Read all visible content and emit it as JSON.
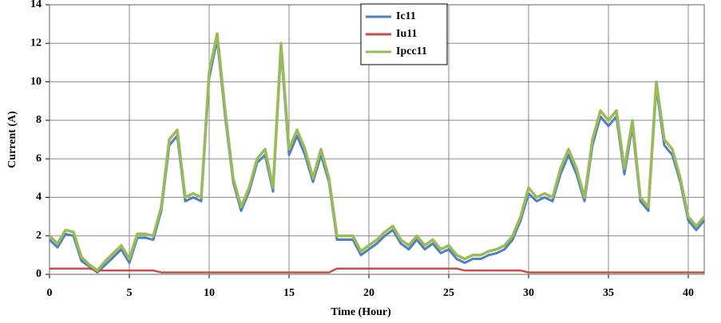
{
  "chart_data": {
    "type": "line",
    "xlabel": "Time (Hour)",
    "ylabel": "Current (A)",
    "x": [
      0,
      0.5,
      1,
      1.5,
      2,
      2.5,
      3,
      3.5,
      4,
      4.5,
      5,
      5.5,
      6,
      6.5,
      7,
      7.5,
      8,
      8.5,
      9,
      9.5,
      10,
      10.5,
      11,
      11.5,
      12,
      12.5,
      13,
      13.5,
      14,
      14.5,
      15,
      15.5,
      16,
      16.5,
      17,
      17.5,
      18,
      18.5,
      19,
      19.5,
      20,
      20.5,
      21,
      21.5,
      22,
      22.5,
      23,
      23.5,
      24,
      24.5,
      25,
      25.5,
      26,
      26.5,
      27,
      27.5,
      28,
      28.5,
      29,
      29.5,
      30,
      30.5,
      31,
      31.5,
      32,
      32.5,
      33,
      33.5,
      34,
      34.5,
      35,
      35.5,
      36,
      36.5,
      37,
      37.5,
      38,
      38.5,
      39,
      39.5,
      40,
      40.5,
      41
    ],
    "series": [
      {
        "name": "Ic11",
        "color": "#4f81bd",
        "values": [
          1.8,
          1.4,
          2.1,
          2.0,
          0.7,
          0.4,
          0.1,
          0.5,
          0.9,
          1.3,
          0.6,
          1.9,
          1.9,
          1.8,
          3.3,
          6.7,
          7.2,
          3.8,
          4.0,
          3.8,
          10.2,
          12.2,
          8.2,
          4.8,
          3.3,
          4.3,
          5.8,
          6.2,
          4.3,
          11.7,
          6.2,
          7.2,
          6.2,
          4.8,
          6.2,
          4.8,
          1.8,
          1.8,
          1.8,
          1.0,
          1.3,
          1.6,
          2.0,
          2.3,
          1.6,
          1.3,
          1.8,
          1.3,
          1.6,
          1.1,
          1.3,
          0.8,
          0.6,
          0.8,
          0.8,
          1.0,
          1.1,
          1.3,
          1.8,
          2.8,
          4.2,
          3.8,
          4.0,
          3.8,
          5.2,
          6.2,
          5.2,
          3.8,
          6.7,
          8.2,
          7.7,
          8.2,
          5.2,
          7.7,
          3.8,
          3.3,
          9.7,
          6.7,
          6.2,
          4.8,
          2.8,
          2.3,
          2.8
        ]
      },
      {
        "name": "Iu11",
        "color": "#c0504d",
        "values": [
          0.3,
          0.3,
          0.3,
          0.3,
          0.3,
          0.3,
          0.2,
          0.2,
          0.2,
          0.2,
          0.2,
          0.2,
          0.2,
          0.2,
          0.1,
          0.1,
          0.1,
          0.1,
          0.1,
          0.1,
          0.1,
          0.1,
          0.1,
          0.1,
          0.1,
          0.1,
          0.1,
          0.1,
          0.1,
          0.1,
          0.1,
          0.1,
          0.1,
          0.1,
          0.1,
          0.1,
          0.3,
          0.3,
          0.3,
          0.3,
          0.3,
          0.3,
          0.3,
          0.3,
          0.3,
          0.3,
          0.3,
          0.3,
          0.3,
          0.3,
          0.3,
          0.3,
          0.2,
          0.2,
          0.2,
          0.2,
          0.2,
          0.2,
          0.2,
          0.2,
          0.1,
          0.1,
          0.1,
          0.1,
          0.1,
          0.1,
          0.1,
          0.1,
          0.1,
          0.1,
          0.1,
          0.1,
          0.1,
          0.1,
          0.1,
          0.1,
          0.1,
          0.1,
          0.1,
          0.1,
          0.1,
          0.1,
          0.1
        ]
      },
      {
        "name": "Ipcc11",
        "color": "#9bbb59",
        "values": [
          2.0,
          1.6,
          2.3,
          2.2,
          0.9,
          0.5,
          0.2,
          0.7,
          1.1,
          1.5,
          0.8,
          2.1,
          2.1,
          2.0,
          3.5,
          7.0,
          7.5,
          4.0,
          4.2,
          4.0,
          10.5,
          12.5,
          8.5,
          5.0,
          3.5,
          4.5,
          6.0,
          6.5,
          4.5,
          12.0,
          6.5,
          7.5,
          6.5,
          5.0,
          6.5,
          5.0,
          2.0,
          2.0,
          2.0,
          1.2,
          1.5,
          1.8,
          2.2,
          2.5,
          1.8,
          1.5,
          2.0,
          1.5,
          1.8,
          1.3,
          1.5,
          1.0,
          0.8,
          1.0,
          1.0,
          1.2,
          1.3,
          1.5,
          2.0,
          3.0,
          4.5,
          4.0,
          4.2,
          4.0,
          5.5,
          6.5,
          5.5,
          4.0,
          7.0,
          8.5,
          8.0,
          8.5,
          5.5,
          8.0,
          4.0,
          3.5,
          10.0,
          7.0,
          6.5,
          5.0,
          3.0,
          2.5,
          3.0
        ]
      }
    ],
    "xlim": [
      0,
      41
    ],
    "xticks": [
      0,
      5,
      10,
      15,
      20,
      25,
      30,
      35,
      40
    ],
    "ylim": [
      0,
      14
    ],
    "yticks": [
      0,
      2,
      4,
      6,
      8,
      10,
      12,
      14
    ],
    "grid": true,
    "legend": "top"
  }
}
